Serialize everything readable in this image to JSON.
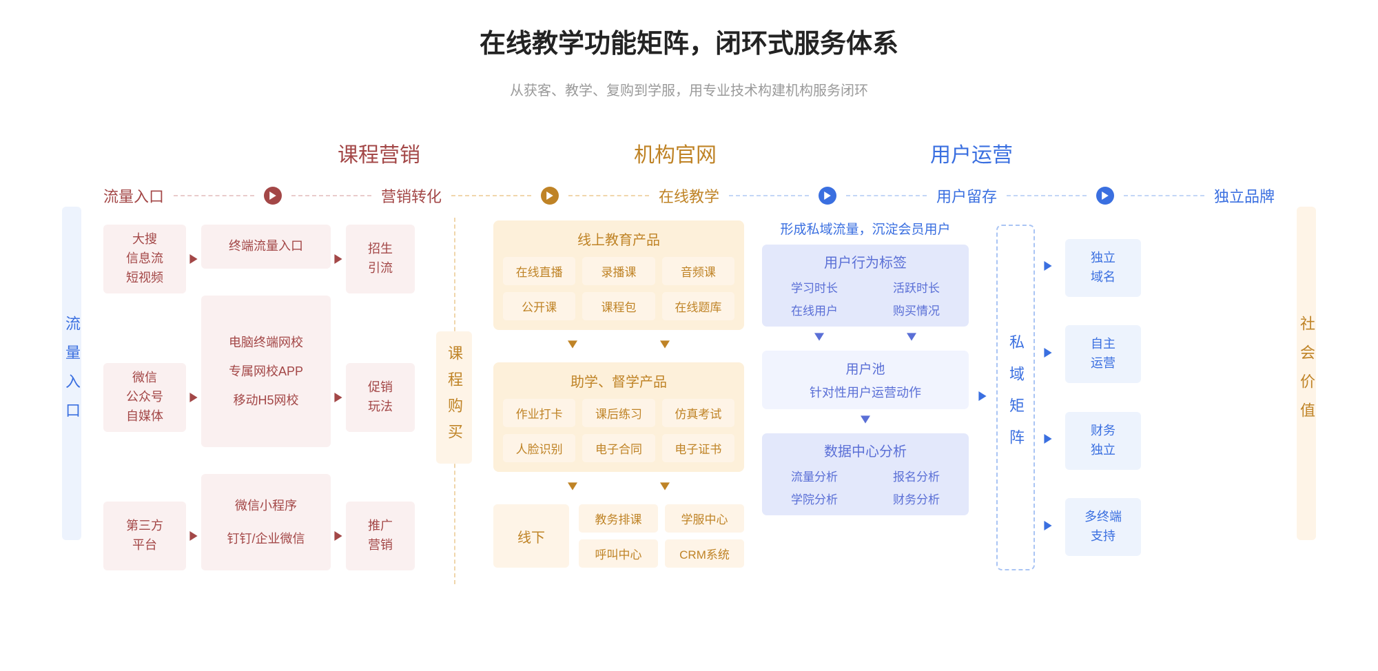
{
  "colors": {
    "red": "#a34747",
    "red_bg": "#faf0f0",
    "org": "#bf8326",
    "org_bg_dark": "#fdf0da",
    "org_bg": "#fef4e7",
    "blue": "#3a6fe0",
    "blue_bg_dark": "#e3e8fb",
    "blue_bg": "#f1f4fe",
    "sidebar_blue": "#edf3fd",
    "text_title": "#232323",
    "text_sub": "#9a9a9a"
  },
  "title": "在线教学功能矩阵，闭环式服务体系",
  "subtitle": "从获客、教学、复购到学服，用专业技术构建机构服务闭环",
  "sections": {
    "left": "课程营销",
    "center": "机构官网",
    "right": "用户运营"
  },
  "left_bar": "流量入口",
  "right_bar": "社会价值",
  "stages": {
    "s1": "流量入口",
    "s2": "营销转化",
    "s3": "在线教学",
    "s4": "用户留存",
    "s5": "独立品牌"
  },
  "col1": {
    "a": "大搜\n信息流\n短视频",
    "b": "微信\n公众号\n自媒体",
    "c": "第三方\n平台"
  },
  "col2": {
    "a": "终端流量入口",
    "b1": "电脑终端网校",
    "b2": "专属网校APP",
    "b3": "移动H5网校",
    "c1": "微信小程序",
    "c2": "钉钉/企业微信"
  },
  "col3": {
    "a": "招生\n引流",
    "b": "促销\n玩法",
    "c": "推广\n营销"
  },
  "col4": "课程购买",
  "col5": {
    "p1_title": "线上教育产品",
    "p1": [
      "在线直播",
      "录播课",
      "音频课",
      "公开课",
      "课程包",
      "在线题库"
    ],
    "p2_title": "助学、督学产品",
    "p2": [
      "作业打卡",
      "课后练习",
      "仿真考试",
      "人脸识别",
      "电子合同",
      "电子证书"
    ],
    "offline_label": "线下",
    "offline": [
      "教务排课",
      "学服中心",
      "呼叫中心",
      "CRM系统"
    ]
  },
  "col6": {
    "caption": "形成私域流量，沉淀会员用户",
    "p1_title": "用户行为标签",
    "p1": [
      "学习时长",
      "活跃时长",
      "在线用户",
      "购买情况"
    ],
    "p2_line1": "用户池",
    "p2_line2": "针对性用户运营动作",
    "p3_title": "数据中心分析",
    "p3": [
      "流量分析",
      "报名分析",
      "学院分析",
      "财务分析"
    ]
  },
  "col7": "私域矩阵",
  "col8": {
    "a": "独立\n域名",
    "b": "自主\n运营",
    "c": "财务\n独立",
    "d": "多终端\n支持"
  }
}
